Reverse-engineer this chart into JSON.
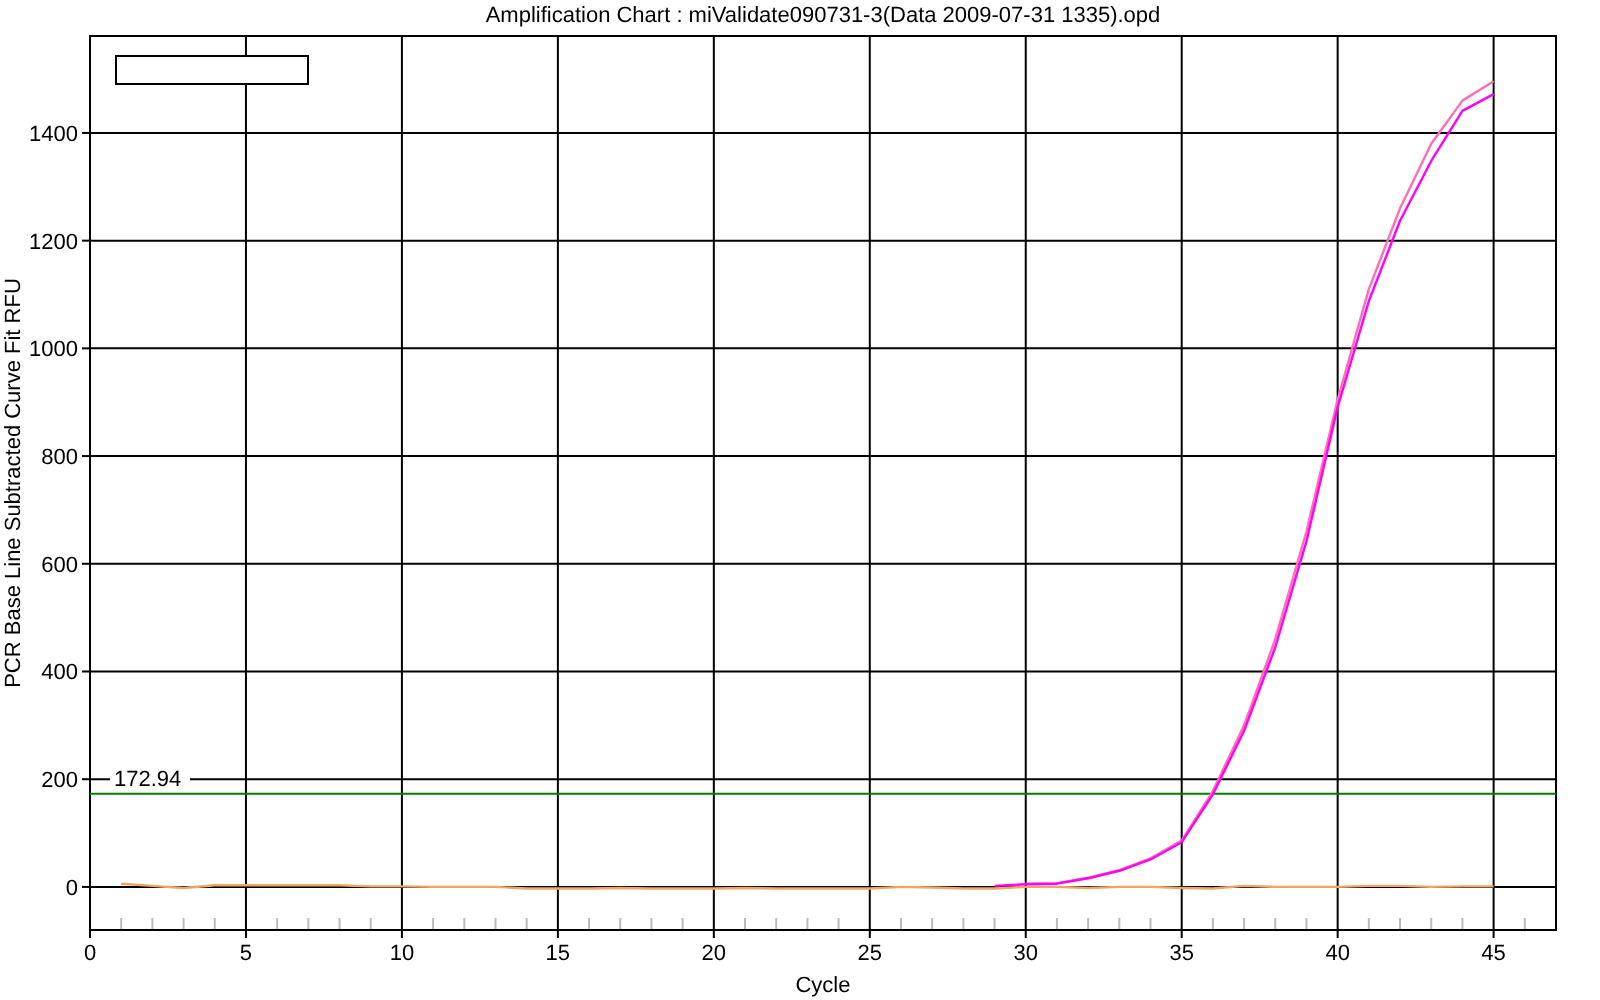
{
  "chart_data": {
    "type": "line",
    "title": "Amplification Chart : miValidate090731-3(Data 2009-07-31 1335).opd",
    "xlabel": "Cycle",
    "ylabel": "PCR Base Line Subtracted Curve Fit RFU",
    "x": [
      1,
      2,
      3,
      4,
      5,
      6,
      7,
      8,
      9,
      10,
      11,
      12,
      13,
      14,
      15,
      16,
      17,
      18,
      19,
      20,
      21,
      22,
      23,
      24,
      25,
      26,
      27,
      28,
      29,
      30,
      31,
      32,
      33,
      34,
      35,
      36,
      37,
      38,
      39,
      40,
      41,
      42,
      43,
      44,
      45
    ],
    "series": [
      {
        "color": "#ff00ff",
        "values": [
          null,
          null,
          null,
          null,
          null,
          null,
          null,
          null,
          null,
          null,
          null,
          null,
          null,
          null,
          null,
          null,
          null,
          null,
          null,
          null,
          null,
          null,
          null,
          null,
          null,
          null,
          null,
          null,
          2,
          5,
          6,
          16,
          30,
          51,
          83,
          172,
          290,
          445,
          642,
          891,
          1088,
          1237,
          1348,
          1441,
          1472
        ]
      },
      {
        "color": "#ff6eb4",
        "values": [
          null,
          null,
          null,
          null,
          null,
          null,
          null,
          null,
          null,
          null,
          null,
          null,
          null,
          null,
          null,
          null,
          null,
          null,
          null,
          null,
          null,
          null,
          null,
          null,
          null,
          null,
          null,
          null,
          null,
          6,
          7,
          17,
          31,
          53,
          86,
          178,
          300,
          460,
          660,
          905,
          1110,
          1260,
          1380,
          1460,
          1496
        ]
      },
      {
        "color": "#f4a460",
        "values": [
          6,
          2,
          -2,
          3,
          3,
          3,
          3,
          3,
          1,
          1,
          0,
          0,
          0,
          -3,
          -3,
          -3,
          -2,
          -3,
          -3,
          -3,
          -2,
          -3,
          -3,
          -3,
          -3,
          0,
          -1,
          -3,
          -3,
          0,
          0,
          -2,
          0,
          0,
          -2,
          -3,
          2,
          0,
          0,
          0,
          2,
          2,
          0,
          1,
          1
        ]
      }
    ],
    "xlim": [
      0,
      47
    ],
    "ylim": [
      -80,
      1580
    ],
    "xticks": [
      0,
      {
        "value": 1,
        "label": null
      },
      {
        "value": 2,
        "label": null
      },
      {
        "value": 3,
        "label": null
      },
      {
        "value": 4,
        "label": null
      },
      5,
      {
        "value": 6,
        "label": null
      },
      {
        "value": 7,
        "label": null
      },
      {
        "value": 8,
        "label": null
      },
      {
        "value": 9,
        "label": null
      },
      10,
      {
        "value": 11,
        "label": null
      },
      {
        "value": 12,
        "label": null
      },
      {
        "value": 13,
        "label": null
      },
      {
        "value": 14,
        "label": null
      },
      15,
      {
        "value": 16,
        "label": null
      },
      {
        "value": 17,
        "label": null
      },
      {
        "value": 18,
        "label": null
      },
      {
        "value": 19,
        "label": null
      },
      20,
      {
        "value": 21,
        "label": null
      },
      {
        "value": 22,
        "label": null
      },
      {
        "value": 23,
        "label": null
      },
      {
        "value": 24,
        "label": null
      },
      25,
      {
        "value": 26,
        "label": null
      },
      {
        "value": 27,
        "label": null
      },
      {
        "value": 28,
        "label": null
      },
      {
        "value": 29,
        "label": null
      },
      30,
      {
        "value": 31,
        "label": null
      },
      {
        "value": 32,
        "label": null
      },
      {
        "value": 33,
        "label": null
      },
      {
        "value": 34,
        "label": null
      },
      35,
      {
        "value": 36,
        "label": null
      },
      {
        "value": 37,
        "label": null
      },
      {
        "value": 38,
        "label": null
      },
      {
        "value": 39,
        "label": null
      },
      40,
      {
        "value": 41,
        "label": null
      },
      {
        "value": 42,
        "label": null
      },
      {
        "value": 43,
        "label": null
      },
      {
        "value": 44,
        "label": null
      },
      45,
      {
        "value": 46,
        "label": null
      }
    ],
    "yticks": [
      0,
      200,
      400,
      600,
      800,
      1000,
      1200,
      1400
    ],
    "ref_lines": [
      {
        "axis": "y",
        "value": 172.94,
        "label": "172.94",
        "color": "#008000"
      }
    ],
    "grid": true,
    "marker": "none",
    "line_style": "solid",
    "legend": false
  }
}
